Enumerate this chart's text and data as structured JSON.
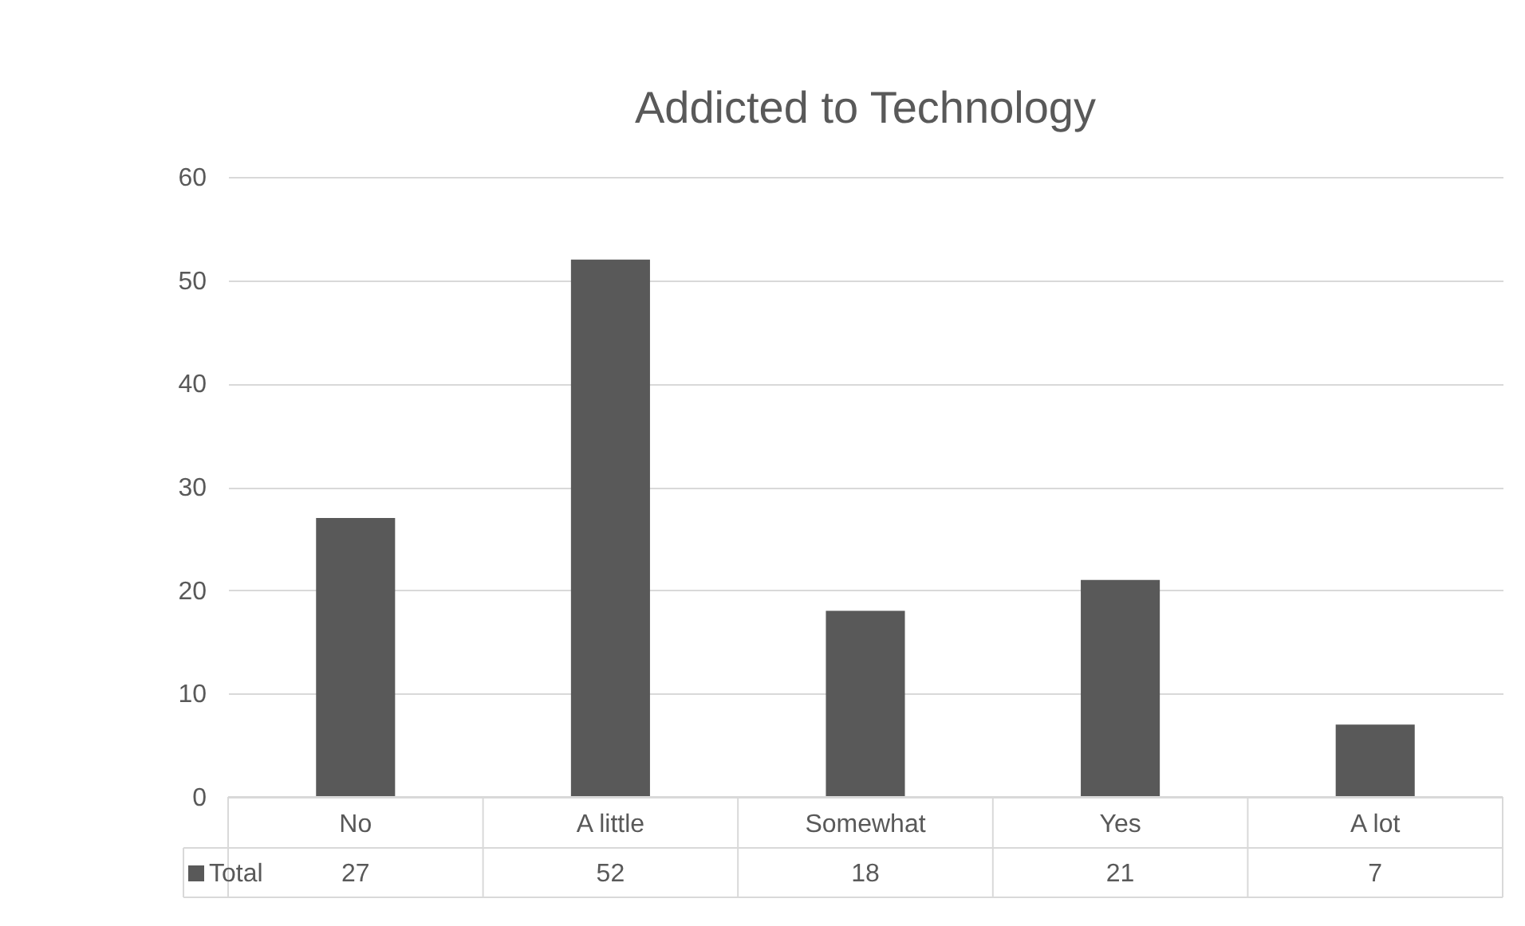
{
  "chart_data": {
    "type": "bar",
    "title": "Addicted to Technology",
    "categories": [
      "No",
      "A little",
      "Somewhat",
      "Yes",
      "A lot"
    ],
    "series": [
      {
        "name": "Total",
        "color": "#595959",
        "values": [
          27,
          52,
          18,
          21,
          7
        ]
      }
    ],
    "ylim": [
      0,
      60
    ],
    "yticks": [
      0,
      10,
      20,
      30,
      40,
      50,
      60
    ],
    "grid": "y",
    "data_labels": true,
    "legend": "bottom"
  }
}
